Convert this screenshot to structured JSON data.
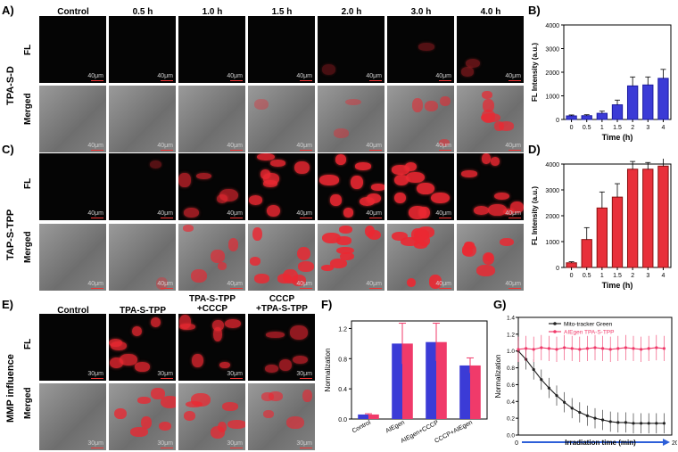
{
  "panels": {
    "A": "A)",
    "B": "B)",
    "C": "C)",
    "D": "D)",
    "E": "E)",
    "F": "F)",
    "G": "G)"
  },
  "row_labels": {
    "fl": "FL",
    "merged": "Merged"
  },
  "group_labels": {
    "top": "TPA-S-D",
    "mid": "TAP-S-TPP",
    "bottom": "MMP influence"
  },
  "time_columns": [
    "Control",
    "0.5 h",
    "1.0 h",
    "1.5 h",
    "2.0 h",
    "3.0 h",
    "4.0 h"
  ],
  "mmp_columns": [
    "Control",
    "TPA-S-TPP",
    "TPA-S-TPP\n+CCCP",
    "CCCP\n+TPA-S-TPP"
  ],
  "scale_40": "40μm",
  "scale_30": "30μm",
  "colors": {
    "blue": "#3b3bd6",
    "red": "#e8303a",
    "pink": "#f03a6a",
    "dark": "#222222"
  },
  "chart_data": [
    {
      "id": "B",
      "type": "bar",
      "categories": [
        "0",
        "0.5",
        "1",
        "1.5",
        "2",
        "3",
        "4"
      ],
      "values": [
        150,
        160,
        260,
        620,
        1420,
        1460,
        1740
      ],
      "errors": [
        40,
        40,
        90,
        200,
        380,
        340,
        380
      ],
      "xlabel": "Time (h)",
      "ylabel": "FL Intensity (a.u.)",
      "ylim": [
        0,
        4000
      ],
      "yticks": [
        "0",
        "1000",
        "2000",
        "3000",
        "4000"
      ]
    },
    {
      "id": "D",
      "type": "bar",
      "categories": [
        "0",
        "0.5",
        "1",
        "1.5",
        "2",
        "3",
        "4"
      ],
      "values": [
        180,
        1080,
        2300,
        2720,
        3800,
        3800,
        3920
      ],
      "errors": [
        40,
        460,
        620,
        520,
        300,
        260,
        320
      ],
      "xlabel": "Time (h)",
      "ylabel": "FL Intensity (a.u.)",
      "ylim": [
        0,
        4000
      ],
      "yticks": [
        "0",
        "1000",
        "2000",
        "3000",
        "4000"
      ]
    },
    {
      "id": "F",
      "type": "bar",
      "categories": [
        "Control",
        "AIEgen",
        "AIEgen+CCCP",
        "CCCP+AIEgen"
      ],
      "values": [
        0.06,
        1.0,
        1.02,
        0.71
      ],
      "errors": [
        0.01,
        0.27,
        0.25,
        0.1
      ],
      "ylabel": "Normalization",
      "ylim": [
        0,
        1.3
      ],
      "yticks": [
        "0.0",
        "0.4",
        "0.8",
        "1.2"
      ]
    },
    {
      "id": "G",
      "type": "line",
      "xlabel": "Irradiation time (min)",
      "ylabel": "Normalization",
      "xlim": [
        0,
        20
      ],
      "ylim": [
        0,
        1.4
      ],
      "xticks": [
        "0",
        "10",
        "20"
      ],
      "yticks": [
        "0.0",
        "0.2",
        "0.4",
        "0.6",
        "0.8",
        "1.0",
        "1.2",
        "1.4"
      ],
      "legend_position": "top-right",
      "series": [
        {
          "name": "Mito-tracker Green",
          "x": [
            0,
            1,
            2,
            3,
            4,
            5,
            6,
            7,
            8,
            9,
            10,
            11,
            12,
            13,
            14,
            15,
            16,
            17,
            18,
            19
          ],
          "y": [
            1.0,
            0.9,
            0.78,
            0.66,
            0.56,
            0.47,
            0.39,
            0.32,
            0.27,
            0.23,
            0.2,
            0.18,
            0.16,
            0.15,
            0.15,
            0.14,
            0.14,
            0.14,
            0.14,
            0.14
          ],
          "error": 0.12
        },
        {
          "name": "AIEgen TPA-S-TPP",
          "x": [
            0,
            1,
            2,
            3,
            4,
            5,
            6,
            7,
            8,
            9,
            10,
            11,
            12,
            13,
            14,
            15,
            16,
            17,
            18,
            19
          ],
          "y": [
            1.02,
            1.03,
            1.02,
            1.04,
            1.03,
            1.02,
            1.04,
            1.03,
            1.02,
            1.03,
            1.04,
            1.03,
            1.02,
            1.03,
            1.04,
            1.03,
            1.02,
            1.03,
            1.04,
            1.03
          ],
          "error": 0.15
        }
      ]
    }
  ]
}
